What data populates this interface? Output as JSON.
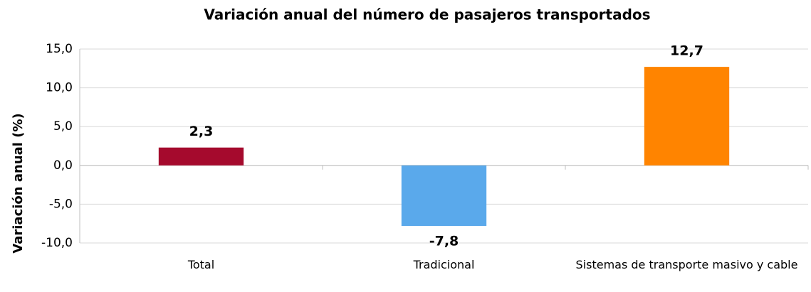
{
  "chart_data": {
    "type": "bar",
    "title": "Variación anual del número de pasajeros transportados",
    "y_label": "Variación anual (%)",
    "categories": [
      "Total",
      "Tradicional",
      "Sistemas de transporte masivo y cable"
    ],
    "values": [
      2.3,
      -7.8,
      12.7
    ],
    "value_labels": [
      "2,3",
      "-7,8",
      "12,7"
    ],
    "colors": [
      "#a50a2d",
      "#5aa9eb",
      "#ff8400"
    ],
    "ylim": [
      -10,
      15
    ],
    "yticks": [
      {
        "value": -10,
        "label": "-10,0"
      },
      {
        "value": -5,
        "label": "-5,0"
      },
      {
        "value": 0,
        "label": "0,0"
      },
      {
        "value": 5,
        "label": "5,0"
      },
      {
        "value": 10,
        "label": "10,0"
      },
      {
        "value": 15,
        "label": "15,0"
      }
    ],
    "grid": true
  }
}
